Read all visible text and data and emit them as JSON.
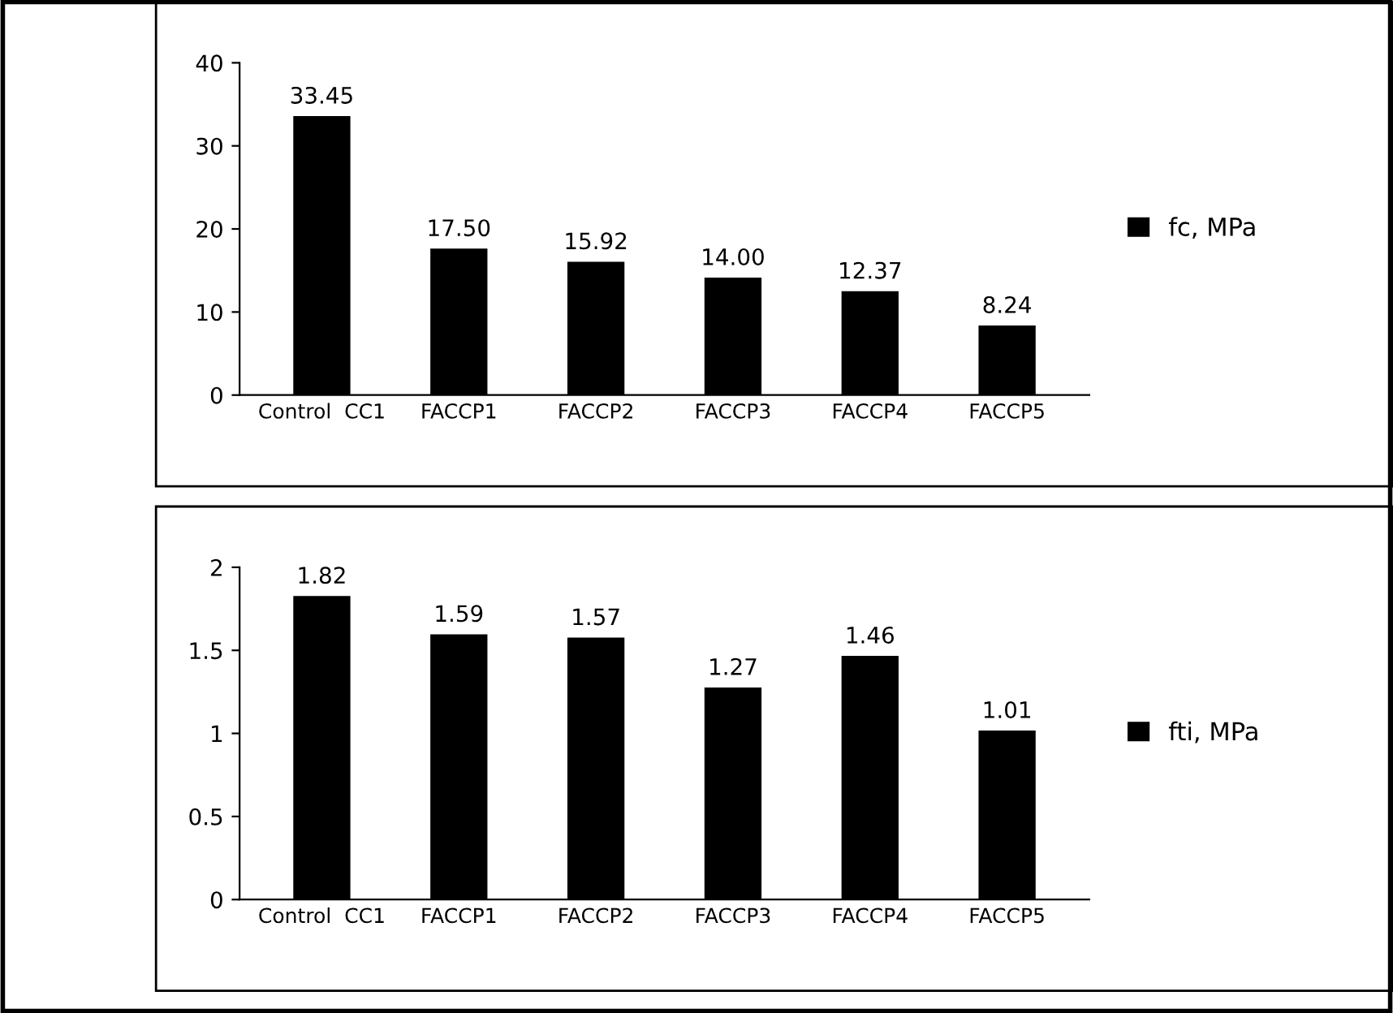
{
  "chart_data": [
    {
      "type": "bar",
      "categories": [
        "Control  CC1",
        "FACCP1",
        "FACCP2",
        "FACCP3",
        "FACCP4",
        "FACCP5"
      ],
      "series": [
        {
          "name": "fc, MPa",
          "color": "#000000",
          "values": [
            33.45,
            17.5,
            15.92,
            14.0,
            12.37,
            8.24
          ]
        }
      ],
      "value_labels": [
        "33.45",
        "17.50",
        "15.92",
        "14.00",
        "12.37",
        "8.24"
      ],
      "ylim": [
        0,
        40
      ],
      "yticks": [
        0,
        10,
        20,
        30,
        40
      ],
      "grid": false,
      "legend": "right"
    },
    {
      "type": "bar",
      "categories": [
        "Control  CC1",
        "FACCP1",
        "FACCP2",
        "FACCP3",
        "FACCP4",
        "FACCP5"
      ],
      "series": [
        {
          "name": "fti, MPa",
          "color": "#000000",
          "values": [
            1.82,
            1.59,
            1.57,
            1.27,
            1.46,
            1.01
          ]
        }
      ],
      "value_labels": [
        "1.82",
        "1.59",
        "1.57",
        "1.27",
        "1.46",
        "1.01"
      ],
      "ylim": [
        0,
        2
      ],
      "yticks": [
        0,
        0.5,
        1,
        1.5,
        2
      ],
      "grid": false,
      "legend": "right"
    }
  ]
}
